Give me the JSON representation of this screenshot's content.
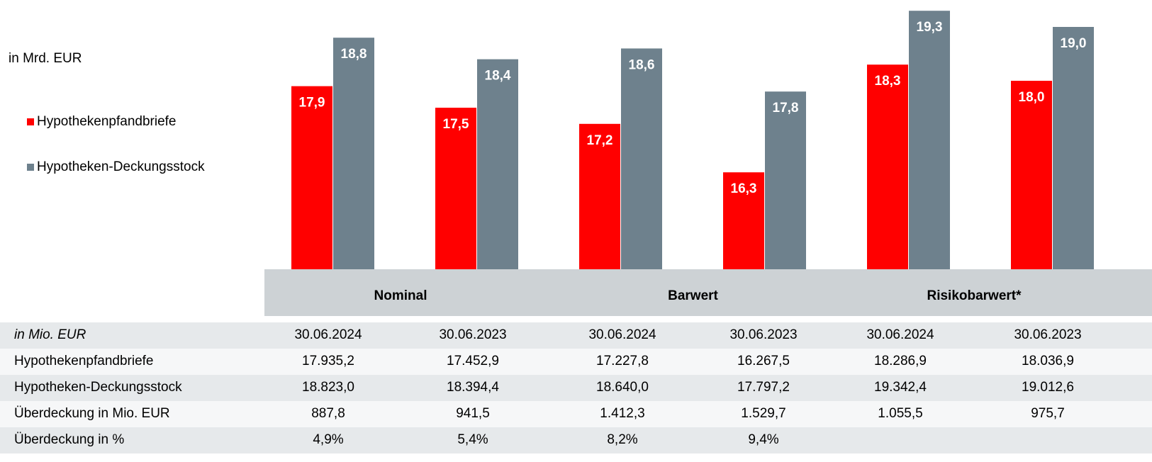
{
  "chart_data": {
    "type": "bar",
    "unit_label": "in Mrd. EUR",
    "categories": [
      null,
      null,
      null,
      null,
      null,
      null
    ],
    "series": [
      {
        "name": "Hypothekenpfandbriefe",
        "color": "#ff0000",
        "values": [
          17.9,
          17.5,
          17.2,
          16.3,
          18.3,
          18.0
        ],
        "value_labels": [
          "17,9",
          "17,5",
          "17,2",
          "16,3",
          "18,3",
          "18,0"
        ]
      },
      {
        "name": "Hypotheken-Deckungsstock",
        "color": "#6e818d",
        "values": [
          18.8,
          18.4,
          18.6,
          17.8,
          19.3,
          19.0
        ],
        "value_labels": [
          "18,8",
          "18,4",
          "18,6",
          "17,8",
          "19,3",
          "19,0"
        ]
      }
    ],
    "ylim": [
      14.5,
      19.5
    ],
    "legend": "left"
  },
  "table": {
    "groups": [
      "Nominal",
      "Barwert",
      "Risikobarwert*"
    ],
    "header": [
      "in Mio. EUR",
      "30.06.2024",
      "30.06.2023",
      "30.06.2024",
      "30.06.2023",
      "30.06.2024",
      "30.06.2023"
    ],
    "rows": [
      [
        "Hypothekenpfandbriefe",
        "17.935,2",
        "17.452,9",
        "17.227,8",
        "16.267,5",
        "18.286,9",
        "18.036,9"
      ],
      [
        "Hypotheken-Deckungsstock",
        "18.823,0",
        "18.394,4",
        "18.640,0",
        "17.797,2",
        "19.342,4",
        "19.012,6"
      ],
      [
        "Überdeckung  in Mio. EUR",
        "887,8",
        "941,5",
        "1.412,3",
        "1.529,7",
        "1.055,5",
        "975,7"
      ],
      [
        "Überdeckung  in %",
        "4,9%",
        "5,4%",
        "8,2%",
        "9,4%"
      ]
    ]
  }
}
